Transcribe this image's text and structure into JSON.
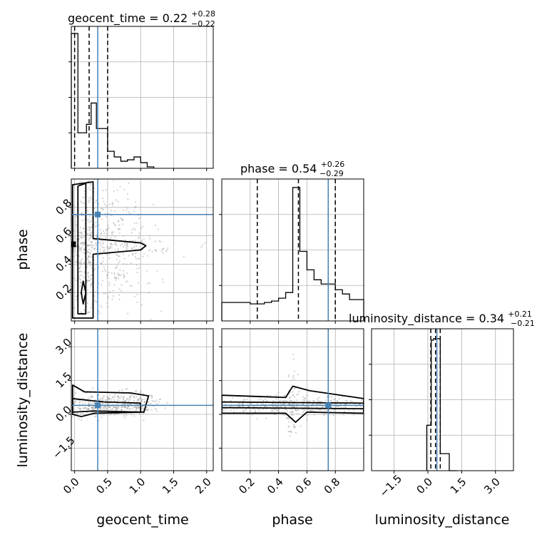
{
  "colors": {
    "truth": "#4682b4",
    "hist": "#000000",
    "grid": "#b0b0b0",
    "frame": "#000000",
    "points": "#808080",
    "density_fill": "#d9d9d9",
    "background": "#ffffff"
  },
  "chart_data": {
    "type": "corner",
    "parameters": [
      "geocent_time",
      "phase",
      "luminosity_distance"
    ],
    "truths": [
      0.35,
      0.75,
      0.4
    ],
    "axes": {
      "geocent_time": {
        "label": "geocent_time",
        "range": [
          -0.05,
          2.1
        ],
        "ticks": [
          0.0,
          0.5,
          1.0,
          1.5,
          2.0
        ],
        "tick_labels": [
          "0.0",
          "0.5",
          "1.0",
          "1.5",
          "2.0"
        ]
      },
      "phase": {
        "label": "phase",
        "range": [
          0.0,
          1.0
        ],
        "ticks": [
          0.2,
          0.4,
          0.6,
          0.8
        ],
        "tick_labels": [
          "0.2",
          "0.4",
          "0.6",
          "0.8"
        ]
      },
      "luminosity_distance": {
        "label": "luminosity_distance",
        "range": [
          -2.5,
          3.8
        ],
        "ticks": [
          -1.5,
          0.0,
          1.5,
          3.0
        ],
        "tick_labels": [
          "−1.5",
          "0.0",
          "1.5",
          "3.0"
        ]
      }
    },
    "titles": [
      {
        "name": "geocent_time",
        "median": "0.22",
        "plus": "+0.28",
        "minus": "−0.22"
      },
      {
        "name": "phase",
        "median": "0.54",
        "plus": "+0.26",
        "minus": "−0.29"
      },
      {
        "name": "luminosity_distance",
        "median": "0.34",
        "plus": "+0.21",
        "minus": "−0.21"
      }
    ],
    "diagonal": [
      {
        "parameter": "geocent_time",
        "quantiles": [
          0.0,
          0.22,
          0.5
        ],
        "hist_ylim": [
          0,
          1.0
        ],
        "bins": [
          [
            -0.05,
            0.05,
            0.95
          ],
          [
            0.05,
            0.18,
            0.25
          ],
          [
            0.18,
            0.25,
            0.31
          ],
          [
            0.25,
            0.33,
            0.46
          ],
          [
            0.33,
            0.5,
            0.28
          ],
          [
            0.5,
            0.6,
            0.12
          ],
          [
            0.6,
            0.7,
            0.08
          ],
          [
            0.7,
            0.8,
            0.05
          ],
          [
            0.8,
            0.9,
            0.06
          ],
          [
            0.9,
            1.0,
            0.08
          ],
          [
            1.0,
            1.1,
            0.04
          ],
          [
            1.1,
            1.2,
            0.01
          ]
        ]
      },
      {
        "parameter": "phase",
        "quantiles": [
          0.25,
          0.54,
          0.8
        ],
        "hist_ylim": [
          0,
          1.0
        ],
        "bins": [
          [
            0.0,
            0.2,
            0.13
          ],
          [
            0.2,
            0.25,
            0.12
          ],
          [
            0.25,
            0.3,
            0.12
          ],
          [
            0.3,
            0.35,
            0.13
          ],
          [
            0.35,
            0.4,
            0.14
          ],
          [
            0.4,
            0.45,
            0.16
          ],
          [
            0.45,
            0.5,
            0.2
          ],
          [
            0.5,
            0.55,
            0.94
          ],
          [
            0.55,
            0.6,
            0.49
          ],
          [
            0.6,
            0.65,
            0.36
          ],
          [
            0.65,
            0.7,
            0.29
          ],
          [
            0.7,
            0.8,
            0.26
          ],
          [
            0.8,
            0.85,
            0.22
          ],
          [
            0.85,
            0.9,
            0.19
          ],
          [
            0.9,
            1.0,
            0.15
          ]
        ]
      },
      {
        "parameter": "luminosity_distance",
        "quantiles": [
          0.13,
          0.34,
          0.55
        ],
        "hist_ylim": [
          0,
          1.0
        ],
        "bins": [
          [
            -0.05,
            0.15,
            0.32
          ],
          [
            0.15,
            0.25,
            0.92
          ],
          [
            0.25,
            0.55,
            0.93
          ],
          [
            0.55,
            0.95,
            0.12
          ],
          [
            0.95,
            1.3,
            0.0
          ]
        ]
      }
    ],
    "scatter": [
      {
        "x": "geocent_time",
        "y": "phase",
        "clusters": [
          {
            "cx": 0.18,
            "cy": 0.5,
            "sx": 0.1,
            "sy": 0.27,
            "n": 260
          },
          {
            "cx": 0.55,
            "cy": 0.5,
            "sx": 0.35,
            "sy": 0.27,
            "n": 320
          },
          {
            "cx": 0.75,
            "cy": 0.52,
            "sx": 0.45,
            "sy": 0.03,
            "n": 90
          }
        ],
        "contours": [
          {
            "points": [
              [
                0.05,
                0.95
              ],
              [
                0.17,
                0.97
              ],
              [
                0.17,
                0.05
              ],
              [
                0.05,
                0.05
              ]
            ]
          },
          {
            "points": [
              [
                -0.03,
                0.96
              ],
              [
                0.28,
                0.98
              ],
              [
                0.28,
                0.58
              ],
              [
                1.0,
                0.55
              ],
              [
                1.08,
                0.53
              ],
              [
                1.0,
                0.5
              ],
              [
                0.28,
                0.47
              ],
              [
                0.28,
                0.02
              ],
              [
                -0.03,
                0.02
              ]
            ]
          },
          {
            "points": [
              [
                0.13,
                0.28
              ],
              [
                0.17,
                0.2
              ],
              [
                0.13,
                0.12
              ],
              [
                0.1,
                0.2
              ]
            ]
          }
        ],
        "density_block": {
          "x": [
            -0.05,
            0.02
          ],
          "y": [
            0.48,
            0.75
          ],
          "core": [
            0.52,
            0.56
          ]
        }
      },
      {
        "x": "geocent_time",
        "y": "luminosity_distance",
        "clusters": [
          {
            "cx": 0.5,
            "cy": 0.4,
            "sx": 0.35,
            "sy": 0.25,
            "n": 380
          },
          {
            "cx": 1.0,
            "cy": 0.55,
            "sx": 0.15,
            "sy": 0.25,
            "n": 70
          }
        ],
        "contours": [
          {
            "points": [
              [
                -0.03,
                1.3
              ],
              [
                0.15,
                1.0
              ],
              [
                0.85,
                0.95
              ],
              [
                1.12,
                0.82
              ],
              [
                1.05,
                0.1
              ],
              [
                0.3,
                0.05
              ],
              [
                0.1,
                -0.1
              ],
              [
                -0.03,
                0.0
              ]
            ]
          },
          {
            "points": [
              [
                -0.03,
                0.7
              ],
              [
                0.45,
                0.55
              ],
              [
                1.0,
                0.5
              ],
              [
                1.0,
                0.1
              ],
              [
                0.3,
                0.15
              ],
              [
                -0.03,
                0.1
              ]
            ]
          }
        ]
      },
      {
        "x": "phase",
        "y": "luminosity_distance",
        "clusters": [
          {
            "cx": 0.5,
            "cy": 0.4,
            "sx": 0.3,
            "sy": 0.2,
            "n": 420
          },
          {
            "cx": 0.5,
            "cy": 0.5,
            "sx": 0.02,
            "sy": 0.8,
            "n": 60
          }
        ],
        "contours": [
          {
            "points": [
              [
                0.0,
                0.85
              ],
              [
                0.45,
                0.75
              ],
              [
                0.5,
                1.25
              ],
              [
                0.62,
                1.05
              ],
              [
                1.0,
                0.7
              ],
              [
                1.0,
                0.05
              ],
              [
                0.6,
                0.1
              ],
              [
                0.52,
                -0.35
              ],
              [
                0.45,
                0.05
              ],
              [
                0.0,
                0.05
              ]
            ]
          },
          {
            "points": [
              [
                0.0,
                0.55
              ],
              [
                1.0,
                0.5
              ],
              [
                1.0,
                0.25
              ],
              [
                0.0,
                0.3
              ]
            ]
          }
        ]
      }
    ]
  }
}
